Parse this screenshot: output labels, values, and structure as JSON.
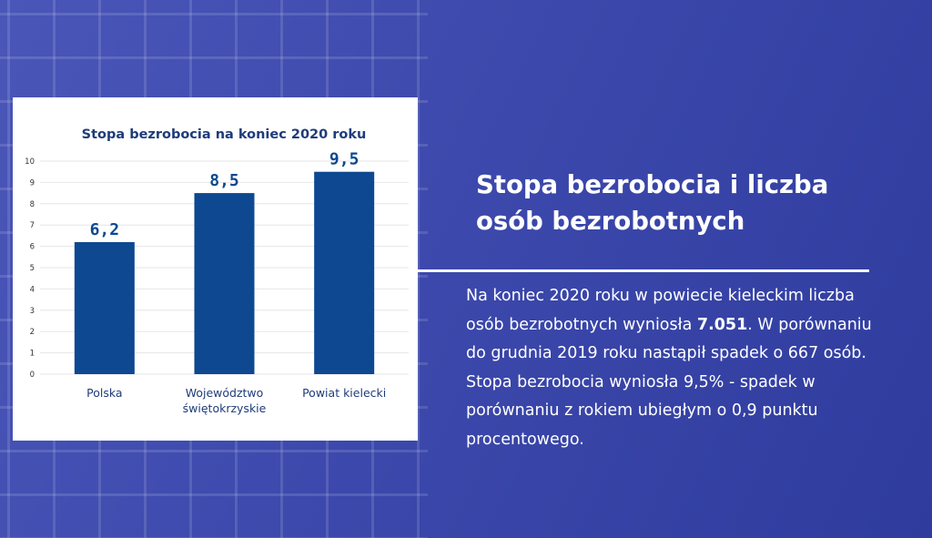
{
  "colors": {
    "background": "#3d49ac",
    "bar": "#0d4891",
    "chart_title": "#1f3c7a",
    "text": "#ffffff"
  },
  "chart_data": {
    "type": "bar",
    "title": "Stopa bezrobocia na koniec 2020 roku",
    "categories": [
      [
        "Polska"
      ],
      [
        "Województwo",
        "świętokrzyskie"
      ],
      [
        "Powiat kielecki"
      ]
    ],
    "values": [
      6.2,
      8.5,
      9.5
    ],
    "value_labels": [
      "6,2",
      "8,5",
      "9,5"
    ],
    "yticks": [
      "0",
      "1",
      "2",
      "3",
      "4",
      "5",
      "6",
      "7",
      "8",
      "9",
      "10"
    ],
    "ylim": [
      0,
      10
    ],
    "grid": true,
    "xlabel": "",
    "ylabel": ""
  },
  "info": {
    "heading_line1": "Stopa bezrobocia i liczba",
    "heading_line2": "osób bezrobotnych",
    "body_before_bold": "Na koniec 2020 roku w powiecie kieleckim liczba osób bezrobotnych wyniosła ",
    "body_bold": "7.051",
    "body_after_bold": ". W porównaniu do grudnia 2019 roku nastąpił spadek o 667 osób. Stopa bezrobocia wyniosła 9,5% - spadek w porównaniu z rokiem ubiegłym o 0,9 punktu procentowego."
  }
}
